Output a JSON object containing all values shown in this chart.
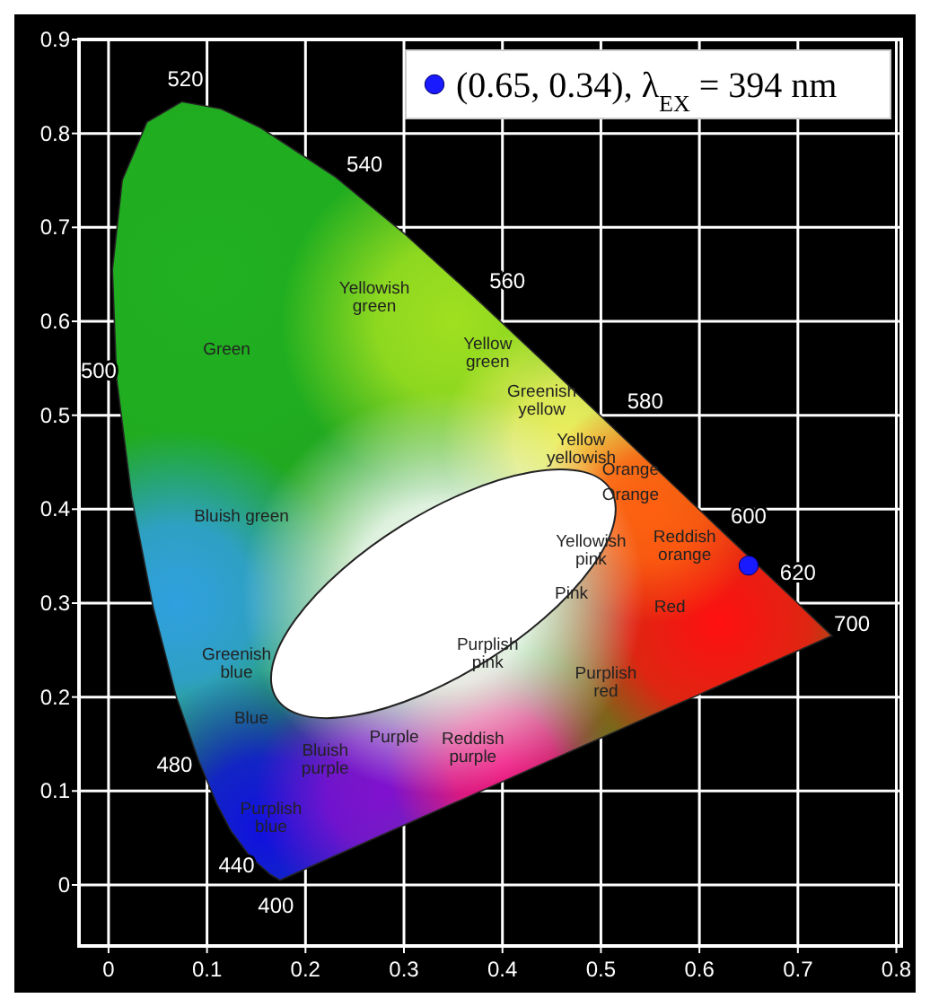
{
  "chart_data": {
    "type": "scatter",
    "x": [
      0.65
    ],
    "xlim": [
      -0.03,
      0.805
    ],
    "ylim": [
      -0.065,
      0.9
    ],
    "xticks": [
      0,
      0.1,
      0.2,
      0.3,
      0.4,
      0.5,
      0.6,
      0.7,
      0.8
    ],
    "yticks": [
      0,
      0.1,
      0.2,
      0.3,
      0.4,
      0.5,
      0.6,
      0.7,
      0.8,
      0.9
    ],
    "grid": true,
    "legend": "top right",
    "marker": "circle",
    "series": [
      {
        "name": "(0.65, 0.34), λ$_{EX}$ = 394 nm",
        "color": "#1a1aff",
        "values": [
          0.34
        ]
      }
    ],
    "annotations": [
      "520",
      "540",
      "560",
      "580",
      "500",
      "600",
      "620",
      "700",
      "480",
      "440",
      "400",
      "Yellowish\ngreen",
      "Green",
      "Yellow\ngreen",
      "Greenish\nyellow",
      "Yellow\nyellowish",
      "Orange",
      "Orange",
      "Bluish green",
      "Yellowish\npink",
      "Reddish\norange",
      "Pink",
      "Red",
      "Greenish\nblue",
      "Purplish\npink",
      "Purplish\nred",
      "Blue",
      "Bluish\npurple",
      "Purple",
      "Reddish\npurple",
      "Purplish\nblue"
    ]
  }
}
